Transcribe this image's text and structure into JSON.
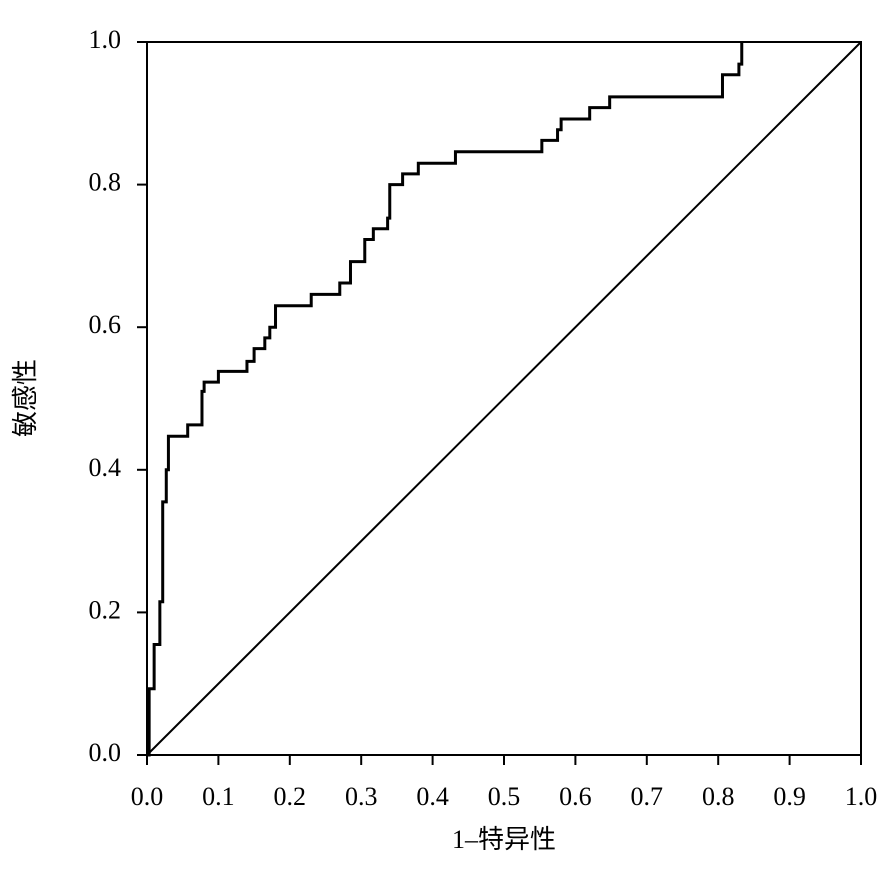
{
  "chart_data": {
    "type": "line",
    "xlabel": "1–特异性",
    "ylabel": "敏感性",
    "xlim": [
      0,
      1
    ],
    "ylim": [
      0,
      1
    ],
    "xticks": [
      {
        "value": 0,
        "label": "0.0"
      },
      0.1,
      0.2,
      0.3,
      0.4,
      0.5,
      0.6,
      0.7,
      0.8,
      0.9,
      {
        "value": 1,
        "label": "1.0"
      }
    ],
    "yticks": [
      {
        "value": 0,
        "label": "0.0"
      },
      0.2,
      0.4,
      0.6,
      0.8,
      {
        "value": 1,
        "label": "1.0"
      }
    ],
    "series": [
      {
        "color": "#000000",
        "x": [
          0,
          0.003,
          0.003,
          0.01,
          0.01,
          0.018,
          0.018,
          0.022,
          0.022,
          0.027,
          0.027,
          0.03,
          0.03,
          0.057,
          0.057,
          0.077,
          0.077,
          0.08,
          0.08,
          0.1,
          0.1,
          0.14,
          0.14,
          0.15,
          0.15,
          0.165,
          0.165,
          0.172,
          0.172,
          0.18,
          0.18,
          0.23,
          0.23,
          0.27,
          0.27,
          0.285,
          0.285,
          0.305,
          0.305,
          0.317,
          0.317,
          0.337,
          0.337,
          0.34,
          0.34,
          0.358,
          0.358,
          0.38,
          0.38,
          0.432,
          0.432,
          0.553,
          0.553,
          0.575,
          0.575,
          0.58,
          0.58,
          0.62,
          0.62,
          0.648,
          0.648,
          0.806,
          0.806,
          0.829,
          0.829,
          0.833,
          0.833
        ],
        "values": [
          0,
          0,
          0.093,
          0.093,
          0.155,
          0.155,
          0.215,
          0.215,
          0.355,
          0.355,
          0.4,
          0.4,
          0.447,
          0.447,
          0.463,
          0.463,
          0.51,
          0.51,
          0.523,
          0.523,
          0.538,
          0.538,
          0.552,
          0.552,
          0.57,
          0.57,
          0.585,
          0.585,
          0.6,
          0.6,
          0.63,
          0.63,
          0.646,
          0.646,
          0.662,
          0.662,
          0.692,
          0.692,
          0.723,
          0.723,
          0.738,
          0.738,
          0.753,
          0.753,
          0.8,
          0.8,
          0.815,
          0.815,
          0.83,
          0.83,
          0.846,
          0.846,
          0.862,
          0.862,
          0.877,
          0.877,
          0.892,
          0.892,
          0.908,
          0.908,
          0.923,
          0.923,
          0.954,
          0.954,
          0.969,
          0.969,
          1
        ]
      },
      {
        "color": "#000000",
        "x": [
          0,
          1
        ],
        "values": [
          0,
          1
        ]
      }
    ]
  }
}
